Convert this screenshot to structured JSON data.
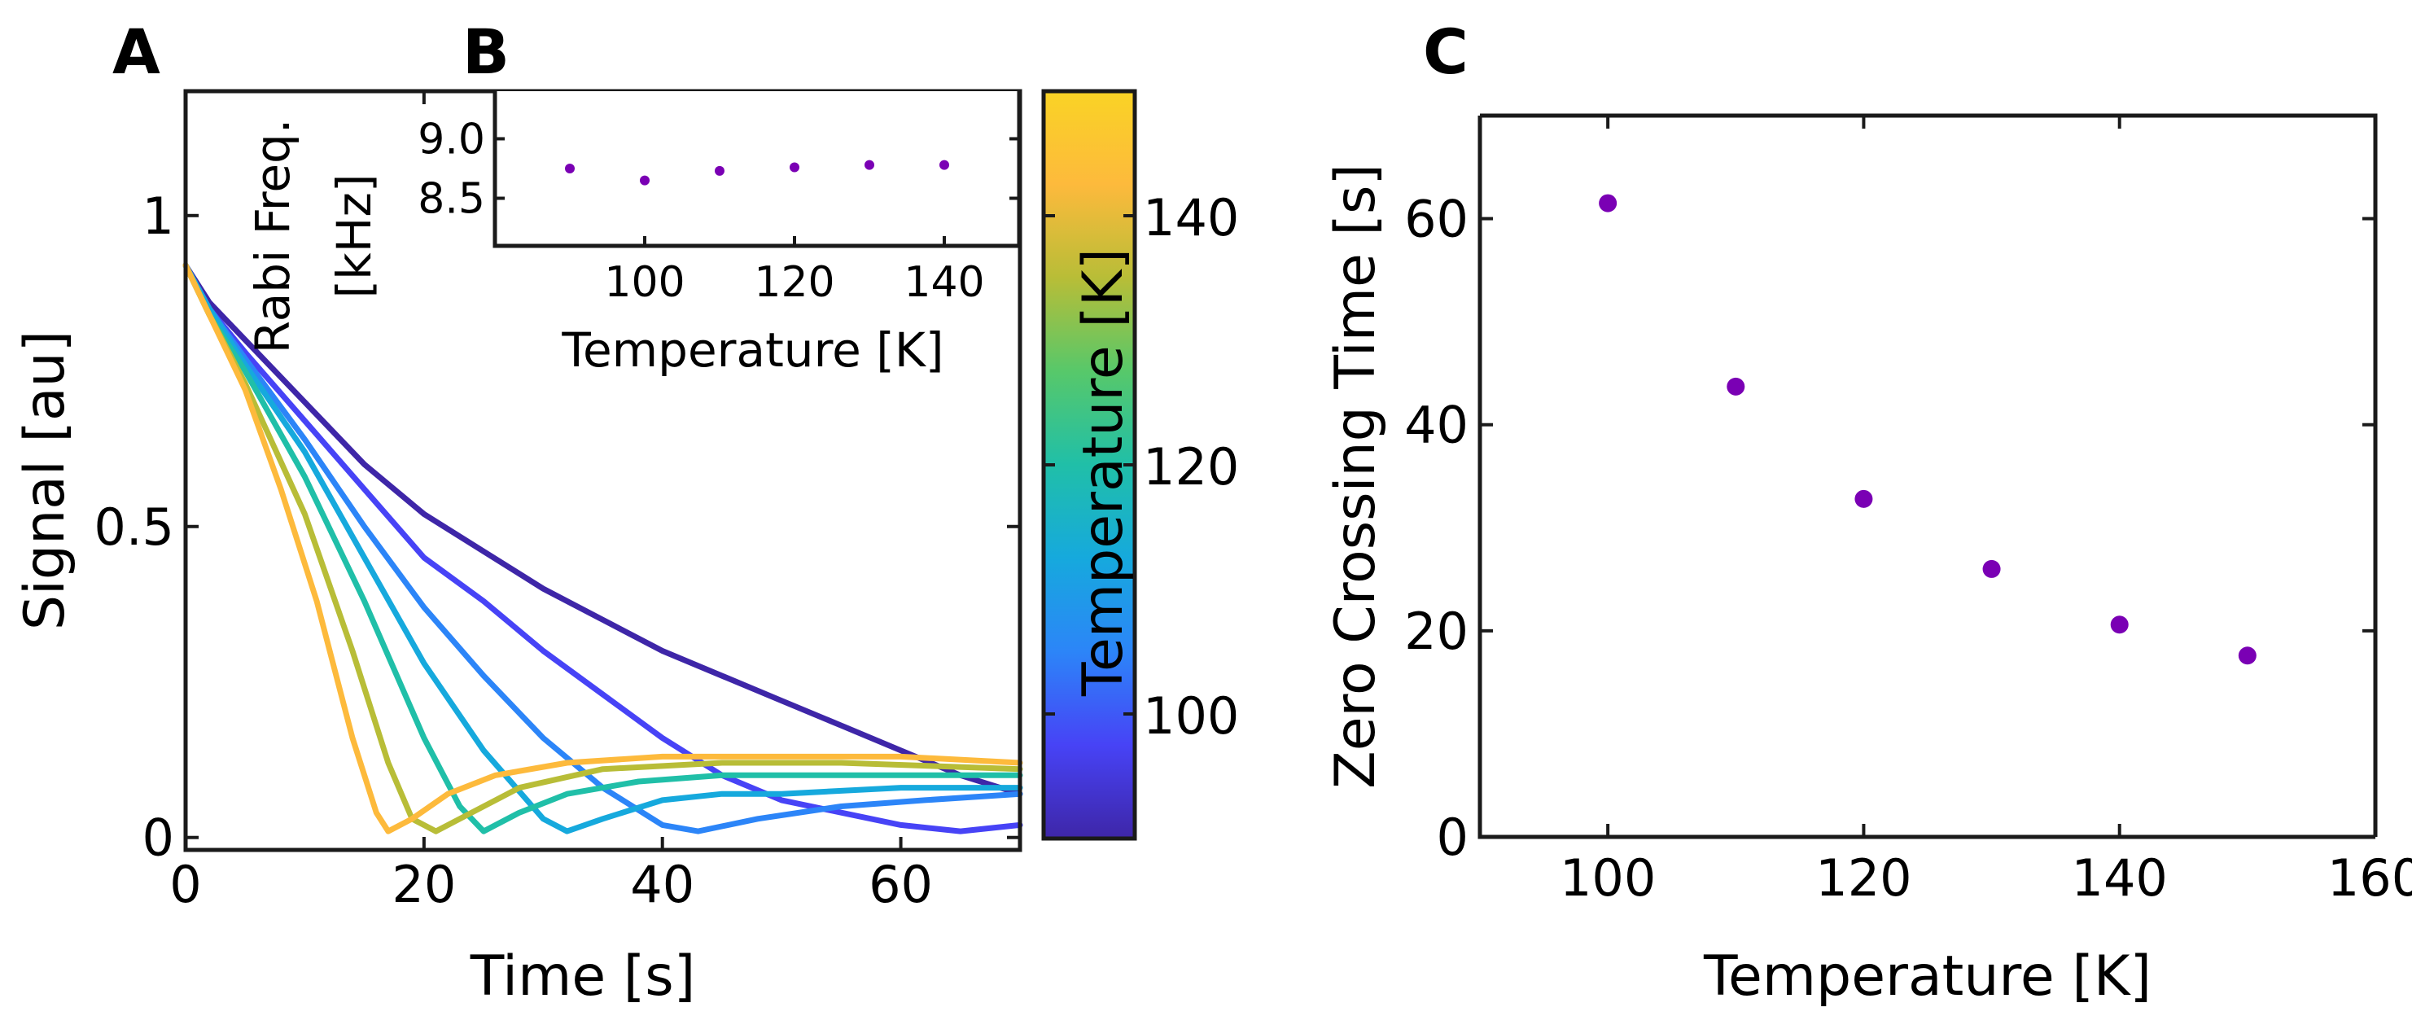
{
  "colors": {
    "marker": "#7a00b4",
    "axis": "#1a1a1a",
    "colormap": [
      "#3e26a8",
      "#4743f6",
      "#2c85f8",
      "#16a9dd",
      "#20bfa8",
      "#57c86a",
      "#b8bd37",
      "#fdba3c",
      "#f9d325"
    ]
  },
  "panel_labels": {
    "a": "A",
    "b": "B",
    "c": "C"
  },
  "colorbar": {
    "label": "Temperature [K]",
    "range": [
      90,
      150
    ],
    "ticks": [
      100,
      120,
      140
    ]
  },
  "chart_data": [
    {
      "id": "A",
      "type": "line",
      "title": "",
      "xlabel": "Time [s]",
      "ylabel": "Signal [au]",
      "xlim": [
        0,
        70
      ],
      "ylim": [
        -0.02,
        1.2
      ],
      "xticks": [
        0,
        20,
        40,
        60
      ],
      "yticks": [
        0,
        0.5,
        1
      ],
      "ytick_labels": [
        "0",
        "0.5",
        "1"
      ],
      "series": [
        {
          "name": "90 K",
          "color": "#3e26a8",
          "x": [
            0,
            2,
            5,
            10,
            15,
            20,
            25,
            30,
            35,
            40,
            45,
            50,
            55,
            60,
            65,
            70
          ],
          "y": [
            0.92,
            0.86,
            0.8,
            0.7,
            0.6,
            0.52,
            0.46,
            0.4,
            0.35,
            0.3,
            0.26,
            0.22,
            0.18,
            0.14,
            0.1,
            0.07
          ]
        },
        {
          "name": "100 K",
          "color": "#4743f6",
          "x": [
            0,
            2,
            5,
            10,
            15,
            20,
            25,
            30,
            35,
            40,
            45,
            50,
            55,
            60,
            65,
            70
          ],
          "y": [
            0.92,
            0.85,
            0.78,
            0.67,
            0.56,
            0.45,
            0.38,
            0.3,
            0.23,
            0.16,
            0.1,
            0.06,
            0.04,
            0.02,
            0.01,
            0.02
          ]
        },
        {
          "name": "110 K",
          "color": "#2c85f8",
          "x": [
            0,
            2,
            5,
            10,
            15,
            20,
            25,
            30,
            35,
            40,
            43,
            48,
            55,
            62,
            70
          ],
          "y": [
            0.92,
            0.85,
            0.77,
            0.64,
            0.5,
            0.37,
            0.26,
            0.16,
            0.08,
            0.02,
            0.01,
            0.03,
            0.05,
            0.06,
            0.07
          ]
        },
        {
          "name": "120 K",
          "color": "#16a9dd",
          "x": [
            0,
            2,
            5,
            10,
            15,
            20,
            25,
            30,
            32,
            35,
            40,
            45,
            50,
            60,
            70
          ],
          "y": [
            0.92,
            0.85,
            0.76,
            0.62,
            0.45,
            0.28,
            0.14,
            0.03,
            0.01,
            0.03,
            0.06,
            0.07,
            0.07,
            0.08,
            0.08
          ]
        },
        {
          "name": "130 K",
          "color": "#20bfa8",
          "x": [
            0,
            2,
            5,
            10,
            15,
            20,
            23,
            25,
            28,
            32,
            38,
            45,
            55,
            70
          ],
          "y": [
            0.92,
            0.84,
            0.75,
            0.58,
            0.38,
            0.16,
            0.05,
            0.01,
            0.04,
            0.07,
            0.09,
            0.1,
            0.1,
            0.1
          ]
        },
        {
          "name": "140 K",
          "color": "#b8bd37",
          "x": [
            0,
            2,
            5,
            10,
            14,
            17,
            19,
            21,
            24,
            28,
            35,
            45,
            55,
            70
          ],
          "y": [
            0.92,
            0.84,
            0.73,
            0.52,
            0.3,
            0.12,
            0.03,
            0.01,
            0.04,
            0.08,
            0.11,
            0.12,
            0.12,
            0.11
          ]
        },
        {
          "name": "150 K",
          "color": "#fdba3c",
          "x": [
            0,
            2,
            5,
            8,
            11,
            14,
            16,
            17,
            19,
            22,
            26,
            32,
            40,
            50,
            60,
            70
          ],
          "y": [
            0.92,
            0.84,
            0.72,
            0.56,
            0.38,
            0.16,
            0.04,
            0.01,
            0.03,
            0.07,
            0.1,
            0.12,
            0.13,
            0.13,
            0.13,
            0.12
          ]
        }
      ]
    },
    {
      "id": "B",
      "type": "scatter",
      "title": "",
      "xlabel": "Temperature [K]",
      "ylabel": "Rabi Freq. [kHz]",
      "ylabel_lines": [
        "Rabi Freq.",
        "[kHz]"
      ],
      "xlim": [
        80,
        150
      ],
      "ylim": [
        8.1,
        9.4
      ],
      "xticks": [
        100,
        120,
        140
      ],
      "yticks": [
        8.5,
        9.0
      ],
      "ytick_labels": [
        "8.5",
        "9.0"
      ],
      "series": [
        {
          "name": "Rabi frequency",
          "x": [
            90,
            100,
            110,
            120,
            130,
            140
          ],
          "y": [
            8.75,
            8.65,
            8.73,
            8.76,
            8.78,
            8.78
          ]
        }
      ]
    },
    {
      "id": "C",
      "type": "scatter",
      "title": "",
      "xlabel": "Temperature [K]",
      "ylabel": "Zero Crossing Time [s]",
      "xlim": [
        90,
        160
      ],
      "ylim": [
        0,
        70
      ],
      "xticks": [
        100,
        120,
        140,
        160
      ],
      "yticks": [
        0,
        20,
        40,
        60
      ],
      "ytick_labels": [
        "0",
        "20",
        "40",
        "60"
      ],
      "series": [
        {
          "name": "Zero crossing time",
          "x": [
            100,
            110,
            120,
            130,
            140,
            150
          ],
          "y": [
            61.5,
            43.7,
            32.8,
            26.0,
            20.6,
            17.6
          ]
        }
      ]
    }
  ]
}
